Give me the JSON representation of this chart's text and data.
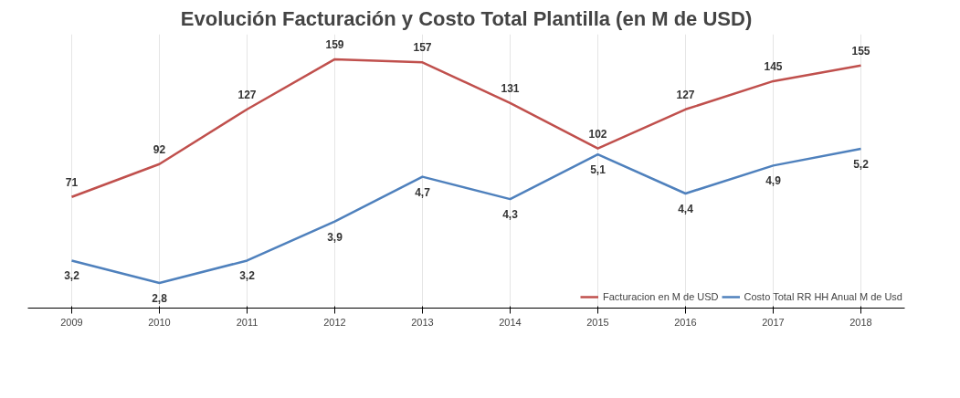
{
  "chart_data": {
    "type": "line",
    "title": "Evolución Facturación y Costo Total Plantilla (en M de USD)",
    "categories": [
      "2009",
      "2010",
      "2011",
      "2012",
      "2013",
      "2014",
      "2015",
      "2016",
      "2017",
      "2018"
    ],
    "series": [
      {
        "name": "Facturacion en M de USD",
        "color": "#c0504d",
        "values": [
          71,
          92,
          127,
          159,
          157,
          131,
          102,
          127,
          145,
          155
        ],
        "value_labels": [
          "71",
          "92",
          "127",
          "159",
          "157",
          "131",
          "102",
          "127",
          "145",
          "155"
        ]
      },
      {
        "name": "Costo Total RR HH Anual M de Usd",
        "color": "#4f81bd",
        "axis": "y2",
        "values": [
          3.2,
          2.8,
          3.2,
          3.9,
          4.7,
          4.3,
          5.1,
          4.4,
          4.9,
          5.2
        ],
        "value_labels": [
          "3,2",
          "2,8",
          "3,2",
          "3,9",
          "4,7",
          "4,3",
          "5,1",
          "4,4",
          "4,9",
          "5,2"
        ]
      }
    ],
    "ylim": [
      0,
      175
    ],
    "y2lim": [
      2.35,
      7.25
    ],
    "tick_labels": "x",
    "grid": "x",
    "legend": "bottom right",
    "line_style": "solid",
    "marker": "none"
  }
}
